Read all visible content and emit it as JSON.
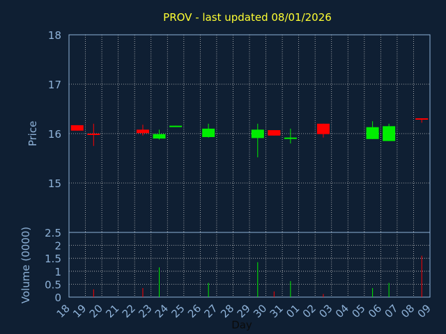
{
  "chart_data": {
    "type": "candlestick",
    "title": "PROV - last updated 08/01/2026",
    "xlabel": "Day",
    "price_panel": {
      "ylabel": "Price",
      "ylim": [
        14.0,
        18.0
      ],
      "yticks": [
        15,
        16,
        17,
        18
      ],
      "grid": true
    },
    "volume_panel": {
      "ylabel": "Volume (0000)",
      "ylim": [
        0,
        2.5
      ],
      "yticks": [
        0,
        0.5,
        1,
        1.5,
        2,
        2.5
      ],
      "grid": true
    },
    "x_tick_labels": [
      "18",
      "19",
      "20",
      "21",
      "22",
      "23",
      "24",
      "25",
      "26",
      "27",
      "28",
      "29",
      "30",
      "31",
      "01",
      "02",
      "03",
      "04",
      "05",
      "06",
      "07",
      "08",
      "09"
    ],
    "candles": [
      {
        "day": "18",
        "open": 16.17,
        "close": 16.06,
        "high": 16.17,
        "low": 16.06,
        "volume": 0.0
      },
      {
        "day": "19",
        "open": 16.0,
        "close": 15.98,
        "high": 16.2,
        "low": 15.75,
        "volume": 0.3
      },
      {
        "day": "22",
        "open": 16.08,
        "close": 16.01,
        "high": 16.18,
        "low": 15.96,
        "volume": 0.35
      },
      {
        "day": "23",
        "open": 15.9,
        "close": 15.99,
        "high": 16.08,
        "low": 15.88,
        "volume": 1.15
      },
      {
        "day": "24",
        "open": 16.15,
        "close": 16.16,
        "high": 16.16,
        "low": 16.14,
        "volume": 0.0
      },
      {
        "day": "26",
        "open": 15.93,
        "close": 16.1,
        "high": 16.2,
        "low": 15.92,
        "volume": 0.55
      },
      {
        "day": "29",
        "open": 15.91,
        "close": 16.08,
        "high": 16.2,
        "low": 15.52,
        "volume": 1.35
      },
      {
        "day": "30",
        "open": 16.07,
        "close": 15.96,
        "high": 16.07,
        "low": 15.96,
        "volume": 0.22
      },
      {
        "day": "31",
        "open": 15.9,
        "close": 15.92,
        "high": 16.1,
        "low": 15.8,
        "volume": 0.62
      },
      {
        "day": "02",
        "open": 16.2,
        "close": 15.99,
        "high": 16.2,
        "low": 15.92,
        "volume": 0.12
      },
      {
        "day": "05",
        "open": 15.89,
        "close": 16.13,
        "high": 16.25,
        "low": 15.89,
        "volume": 0.35
      },
      {
        "day": "06",
        "open": 15.85,
        "close": 16.15,
        "high": 16.2,
        "low": 15.85,
        "volume": 0.55
      },
      {
        "day": "08",
        "open": 16.31,
        "close": 16.29,
        "high": 16.31,
        "low": 16.22,
        "volume": 1.6
      }
    ],
    "colors": {
      "background": "#0f1f33",
      "plot_border": "#8fb3d9",
      "grid": "#c8c8c8",
      "up": "#00ee00",
      "down": "#ff0000",
      "title": "#ffff33",
      "axis_text": "#8fb3d9"
    }
  }
}
